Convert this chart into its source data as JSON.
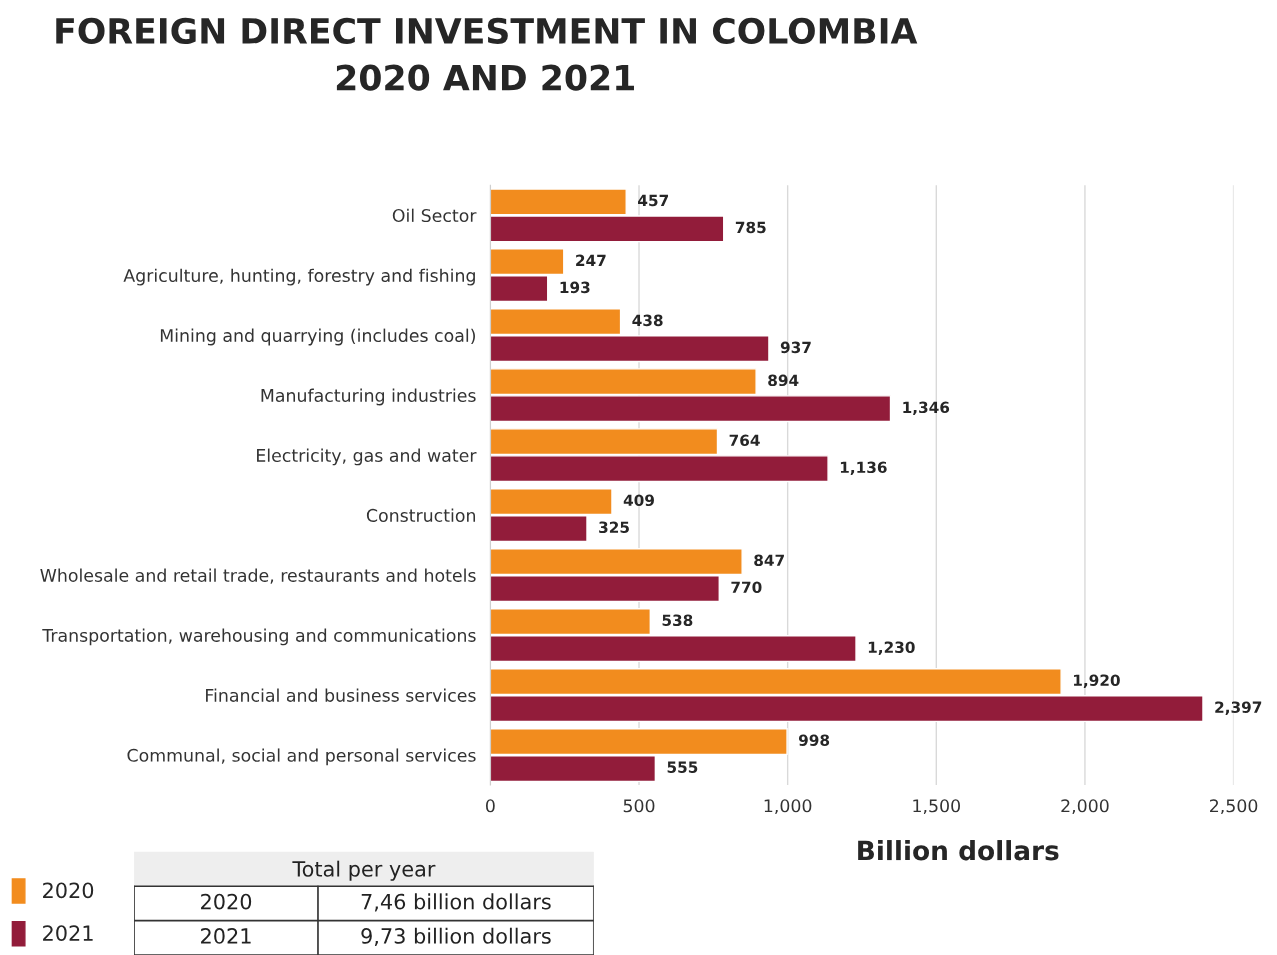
{
  "chart_data": {
    "type": "bar",
    "orientation": "horizontal",
    "title": "FOREIGN DIRECT INVESTMENT IN COLOMBIA\n2020 AND 2021",
    "xlabel": "Billion dollars",
    "categories": [
      "Oil Sector",
      "Agriculture, hunting, forestry and fishing",
      "Mining and quarrying (includes coal)",
      "Manufacturing industries",
      "Electricity, gas and water",
      "Construction",
      "Wholesale and retail trade, restaurants and hotels",
      "Transportation, warehousing and communications",
      "Financial and business services",
      "Communal, social and personal services"
    ],
    "series": [
      {
        "name": "2020",
        "color": "#f28c1e",
        "values": [
          457,
          247,
          438,
          894,
          764,
          409,
          847,
          538,
          1920,
          998
        ],
        "value_labels": [
          "457",
          "247",
          "438",
          "894",
          "764",
          "409",
          "847",
          "538",
          "1,920",
          "998"
        ]
      },
      {
        "name": "2021",
        "color": "#921c3a",
        "values": [
          785,
          193,
          937,
          1346,
          1136,
          325,
          770,
          1230,
          2397,
          555
        ],
        "value_labels": [
          "785",
          "193",
          "937",
          "1,346",
          "1,136",
          "325",
          "770",
          "1,230",
          "2,397",
          "555"
        ]
      }
    ],
    "xlim": [
      0,
      2500
    ],
    "xticks": [
      0,
      500,
      {
        "value": 1000,
        "label": "1,000"
      },
      {
        "value": 1500,
        "label": "1,500"
      },
      {
        "value": 2000,
        "label": "2,000"
      },
      {
        "value": 2500,
        "label": "2,500"
      }
    ],
    "grid": "x",
    "legend": "bottom left",
    "annotations": [
      "Total per year",
      "2020",
      "7,46 billion dollars",
      "2021",
      "9,73 billion dollars"
    ]
  }
}
